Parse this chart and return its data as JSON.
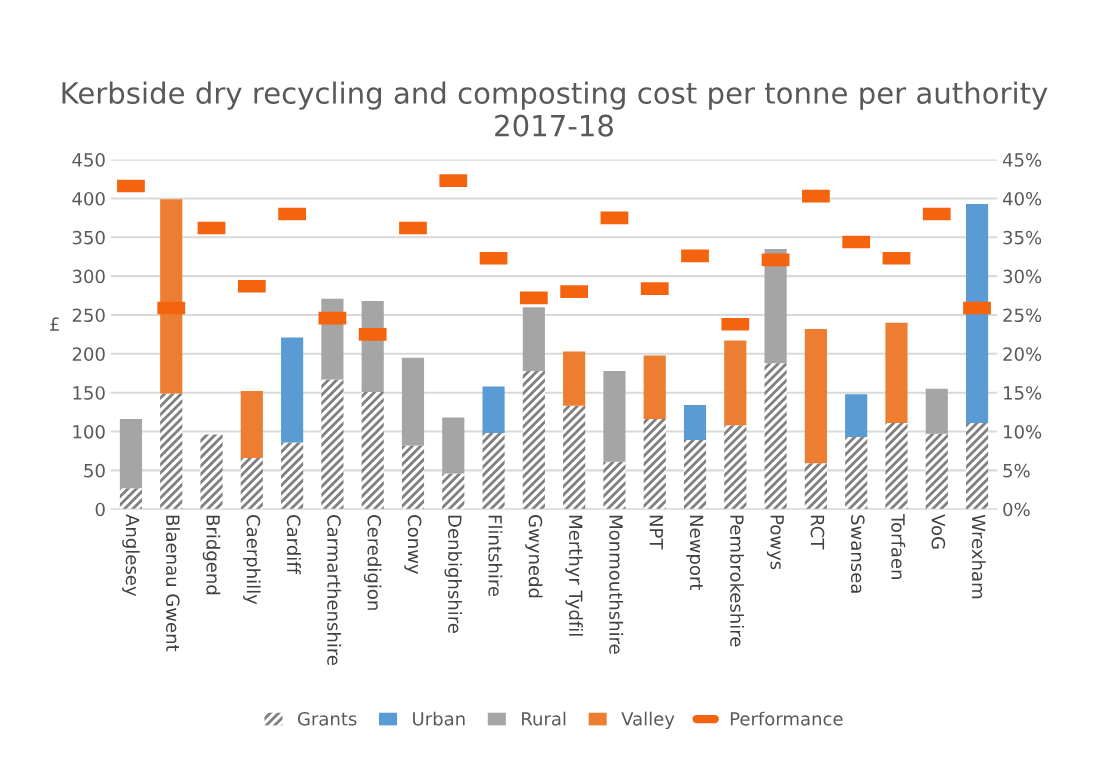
{
  "chart_data": {
    "type": "bar",
    "title": "Kerbside dry recycling and composting cost per tonne per authority 2017-18",
    "categories": [
      "Anglesey",
      "Blaenau Gwent",
      "Bridgend",
      "Caerphilly",
      "Cardiff",
      "Carmarthenshire",
      "Ceredigion",
      "Conwy",
      "Denbighshire",
      "Flintshire",
      "Gwynedd",
      "Merthyr Tydfil",
      "Monmouthshire",
      "NPT",
      "Newport",
      "Pembrokeshire",
      "Powys",
      "RCT",
      "Swansea",
      "Torfaen",
      "VoG",
      "Wrexham"
    ],
    "stacked": true,
    "ylabel": "£",
    "ylim": [
      0,
      450
    ],
    "yticks": [
      0,
      50,
      100,
      150,
      200,
      250,
      300,
      350,
      400,
      450
    ],
    "y2lim": [
      0,
      45
    ],
    "y2ticks": [
      {
        "value": 0,
        "label": "0%"
      },
      {
        "value": 5,
        "label": "5%"
      },
      {
        "value": 10,
        "label": "10%"
      },
      {
        "value": 15,
        "label": "15%"
      },
      {
        "value": 20,
        "label": "20%"
      },
      {
        "value": 25,
        "label": "25%"
      },
      {
        "value": 30,
        "label": "30%"
      },
      {
        "value": 35,
        "label": "35%"
      },
      {
        "value": 40,
        "label": "40%"
      },
      {
        "value": 45,
        "label": "45%"
      }
    ],
    "grid": "y",
    "legend": "bottom",
    "series": [
      {
        "name": "Grants",
        "color": "#7f7f7f",
        "values": [
          27,
          149,
          96,
          66,
          86,
          167,
          151,
          82,
          46,
          98,
          178,
          133,
          61,
          116,
          89,
          108,
          188,
          59,
          93,
          111,
          97,
          111
        ]
      },
      {
        "name": "Urban",
        "color": "#5b9bd5",
        "values": [
          null,
          null,
          null,
          null,
          135,
          null,
          null,
          null,
          null,
          60,
          null,
          null,
          null,
          null,
          45,
          null,
          null,
          null,
          55,
          null,
          null,
          282
        ]
      },
      {
        "name": "Rural",
        "color": "#a5a5a5",
        "values": [
          89,
          null,
          null,
          null,
          null,
          104,
          117,
          113,
          72,
          null,
          82,
          null,
          117,
          null,
          null,
          null,
          147,
          null,
          null,
          null,
          58,
          null
        ]
      },
      {
        "name": "Valley",
        "color": "#ed7d31",
        "values": [
          null,
          250,
          null,
          86,
          null,
          null,
          null,
          null,
          null,
          null,
          null,
          70,
          null,
          82,
          null,
          109,
          null,
          173,
          null,
          129,
          null,
          null
        ]
      },
      {
        "name": "Performance",
        "color": "#f4640f",
        "type": "scatter",
        "axis": "y2",
        "values": [
          41.6,
          25.9,
          36.2,
          28.7,
          38.0,
          24.6,
          22.5,
          36.2,
          42.3,
          32.3,
          27.2,
          28.0,
          37.5,
          28.4,
          32.6,
          23.8,
          32.1,
          40.3,
          34.4,
          32.3,
          38.0,
          25.9
        ]
      }
    ]
  }
}
